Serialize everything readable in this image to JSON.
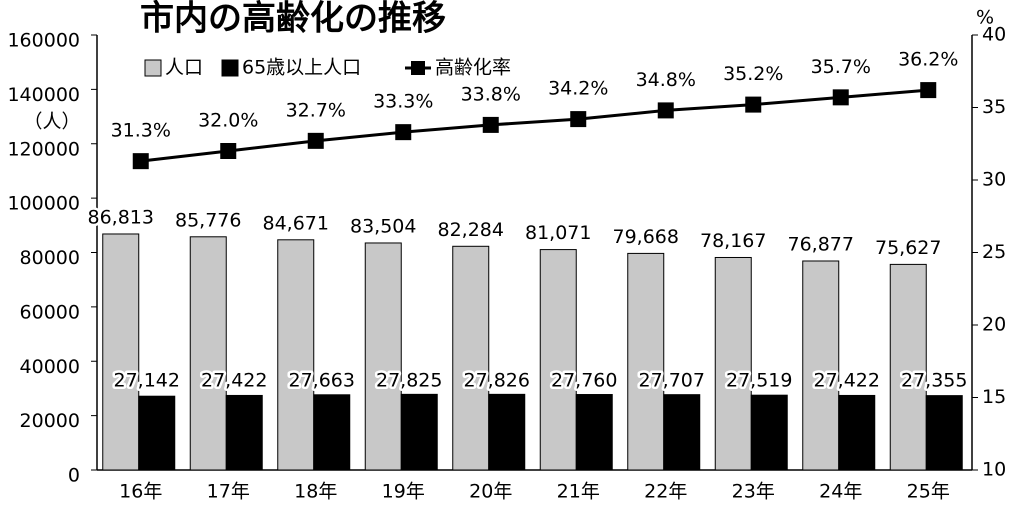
{
  "chart_data": {
    "type": "bar-line",
    "title": "市内の高齢化の推移",
    "y_label": "（人）",
    "y2_label": "%",
    "categories": [
      "16年",
      "17年",
      "18年",
      "19年",
      "20年",
      "21年",
      "22年",
      "23年",
      "24年",
      "25年"
    ],
    "series": [
      {
        "name": "人口",
        "type": "bar",
        "color": "#c8c8c8",
        "values": [
          86813,
          85776,
          84671,
          83504,
          82284,
          81071,
          79668,
          78167,
          76877,
          75627
        ],
        "value_labels": [
          "86,813",
          "85,776",
          "84,671",
          "83,504",
          "82,284",
          "81,071",
          "79,668",
          "78,167",
          "76,877",
          "75,627"
        ]
      },
      {
        "name": "65歳以上人口",
        "type": "bar",
        "color": "#000000",
        "values": [
          27142,
          27422,
          27663,
          27825,
          27826,
          27760,
          27707,
          27519,
          27422,
          27355
        ],
        "value_labels": [
          "27,142",
          "27,422",
          "27,663",
          "27,825",
          "27,826",
          "27,760",
          "27,707",
          "27,519",
          "27,422",
          "27,355"
        ]
      },
      {
        "name": "高齢化率",
        "type": "line",
        "axis": "y2",
        "color": "#000000",
        "values": [
          31.3,
          32.0,
          32.7,
          33.3,
          33.8,
          34.2,
          34.8,
          35.2,
          35.7,
          36.2
        ],
        "value_labels": [
          "31.3%",
          "32.0%",
          "32.7%",
          "33.3%",
          "33.8%",
          "34.2%",
          "34.8%",
          "35.2%",
          "35.7%",
          "36.2%"
        ]
      }
    ],
    "ylim": [
      0,
      160000
    ],
    "yticks": [
      0,
      20000,
      40000,
      60000,
      80000,
      100000,
      120000,
      140000,
      160000
    ],
    "y2lim": [
      10,
      40
    ],
    "y2ticks": [
      10,
      15,
      20,
      25,
      30,
      35,
      40
    ]
  }
}
